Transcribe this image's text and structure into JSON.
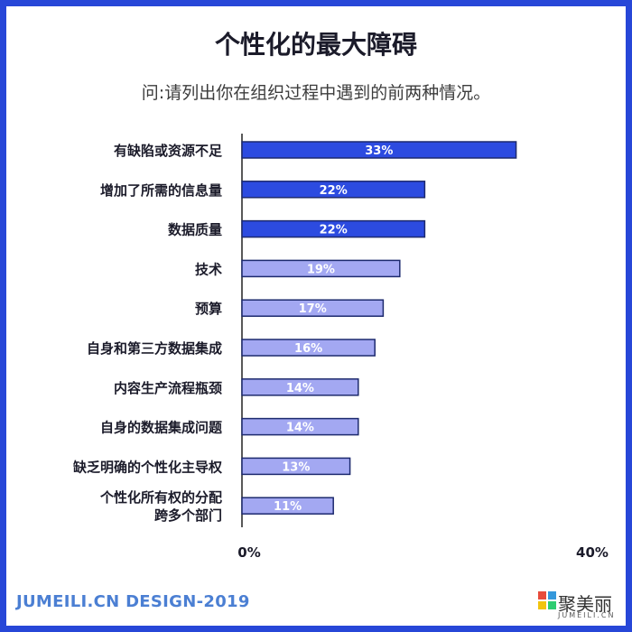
{
  "header": {
    "title": "个性化的最大障碍",
    "subtitle": "问:请列出你在组织过程中遇到的前两种情况。"
  },
  "footer": {
    "brand_text": "JUMEILI.CN DESIGN-2019",
    "logo_text": "聚美丽",
    "logo_sub": "JUMEILI.CN"
  },
  "colors": {
    "frame": "#2747d8",
    "bar_dark": "#2c4be0",
    "bar_light": "#a3a8f2",
    "bar_border": "#1d2a6e",
    "footer_text": "#4b7fd3"
  },
  "chart_data": {
    "type": "bar",
    "orientation": "horizontal",
    "title": "个性化的最大障碍",
    "subtitle": "问:请列出你在组织过程中遇到的前两种情况。",
    "categories": [
      "有缺陷或资源不足",
      "增加了所需的信息量",
      "数据质量",
      "技术",
      "预算",
      "自身和第三方数据集成",
      "内容生产流程瓶颈",
      "自身的数据集成问题",
      "缺乏明确的个性化主导权",
      "个性化所有权的分配跨多个部门"
    ],
    "category_lines": [
      [
        "有缺陷或资源不足"
      ],
      [
        "增加了所需的信息量"
      ],
      [
        "数据质量"
      ],
      [
        "技术"
      ],
      [
        "预算"
      ],
      [
        "自身和第三方数据集成"
      ],
      [
        "内容生产流程瓶颈"
      ],
      [
        "自身的数据集成问题"
      ],
      [
        "缺乏明确的个性化主导权"
      ],
      [
        "个性化所有权的分配",
        "跨多个部门"
      ]
    ],
    "values": [
      33,
      22,
      22,
      19,
      17,
      16,
      14,
      14,
      13,
      11
    ],
    "value_labels": [
      "33%",
      "22%",
      "22%",
      "19%",
      "17%",
      "16%",
      "14%",
      "14%",
      "13%",
      "11%"
    ],
    "highlight_top": 3,
    "xlim": [
      0,
      40
    ],
    "x_ticks": [
      "0%",
      "40%"
    ],
    "grid": false,
    "legend": "none"
  }
}
